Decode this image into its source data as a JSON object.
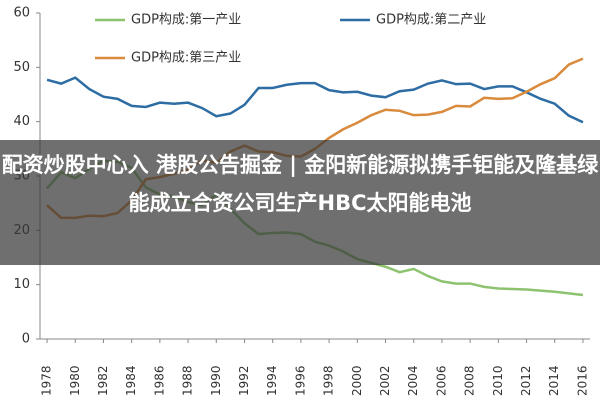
{
  "chart_data": {
    "type": "line",
    "x": [
      1978,
      1979,
      1980,
      1981,
      1982,
      1983,
      1984,
      1985,
      1986,
      1987,
      1988,
      1989,
      1990,
      1991,
      1992,
      1993,
      1994,
      1995,
      1996,
      1997,
      1998,
      1999,
      2000,
      2001,
      2002,
      2003,
      2004,
      2005,
      2006,
      2007,
      2008,
      2009,
      2010,
      2011,
      2012,
      2013,
      2014,
      2015,
      2016
    ],
    "xlim": [
      1977.5,
      2016.5
    ],
    "xticks": [
      1978,
      1980,
      1982,
      1984,
      1986,
      1988,
      1990,
      1992,
      1994,
      1996,
      1998,
      2000,
      2002,
      2004,
      2006,
      2008,
      2010,
      2012,
      2014,
      2016
    ],
    "ylim": [
      0,
      60
    ],
    "yticks": [
      0,
      10,
      20,
      30,
      40,
      50,
      60
    ],
    "grid": false,
    "series": [
      {
        "name": "GDP构成:第一产业",
        "color": "#8dc26f",
        "values": [
          27.7,
          30.7,
          29.6,
          31.3,
          32.8,
          32.6,
          31.5,
          27.9,
          26.6,
          26.3,
          25.2,
          24.6,
          26.6,
          24.0,
          21.3,
          19.3,
          19.5,
          19.6,
          19.3,
          17.9,
          17.2,
          16.1,
          14.7,
          14.0,
          13.3,
          12.3,
          12.9,
          11.6,
          10.6,
          10.2,
          10.2,
          9.6,
          9.3,
          9.2,
          9.1,
          8.9,
          8.7,
          8.4,
          8.1
        ]
      },
      {
        "name": "GDP构成:第二产业",
        "color": "#2e6ca4",
        "values": [
          47.7,
          47.0,
          48.1,
          46.0,
          44.6,
          44.2,
          42.9,
          42.7,
          43.5,
          43.3,
          43.5,
          42.5,
          41.0,
          41.5,
          43.1,
          46.2,
          46.2,
          46.8,
          47.1,
          47.1,
          45.8,
          45.4,
          45.5,
          44.8,
          44.5,
          45.6,
          45.9,
          47.0,
          47.6,
          46.9,
          47.0,
          46.0,
          46.5,
          46.5,
          45.4,
          44.2,
          43.3,
          41.1,
          39.9
        ]
      },
      {
        "name": "GDP构成:第三产业",
        "color": "#d98a3c",
        "values": [
          24.6,
          22.3,
          22.3,
          22.7,
          22.6,
          23.2,
          25.5,
          29.4,
          29.8,
          30.4,
          31.2,
          32.9,
          32.4,
          34.5,
          35.6,
          34.5,
          34.4,
          33.7,
          33.6,
          35.0,
          37.0,
          38.6,
          39.8,
          41.2,
          42.2,
          42.0,
          41.2,
          41.3,
          41.8,
          42.9,
          42.8,
          44.4,
          44.2,
          44.3,
          45.5,
          46.9,
          48.0,
          50.5,
          51.6
        ]
      }
    ]
  },
  "overlay": {
    "text": "配资炒股中心入 港股公告掘金 | 金阳新能源拟携手钜能及隆基绿能成立合资公司生产HBC太阳能电池"
  }
}
